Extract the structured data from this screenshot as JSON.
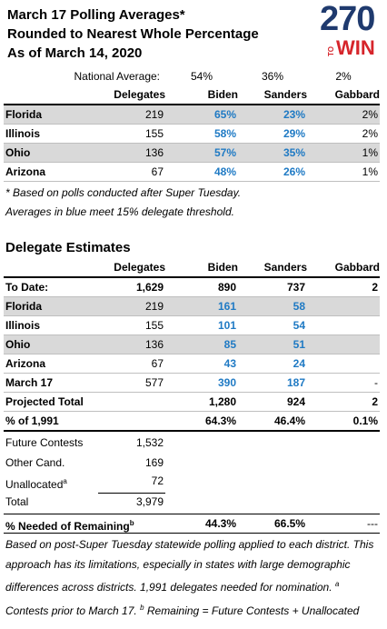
{
  "logo": {
    "number": "270",
    "to": "TO",
    "win": "WIN"
  },
  "polling": {
    "title": [
      "March 17 Polling Averages*",
      "Rounded to Nearest Whole Percentage",
      "As of March 14, 2020"
    ],
    "national_average": {
      "label": "National Average:",
      "values": [
        "54%",
        "36%",
        "2%"
      ]
    },
    "columns": [
      "Delegates",
      "Biden",
      "Sanders",
      "Gabbard"
    ],
    "rows": [
      {
        "label": "Florida",
        "cells": [
          "219",
          "65%",
          "23%",
          "2%"
        ],
        "shaded": true,
        "blue": true
      },
      {
        "label": "Illinois",
        "cells": [
          "155",
          "58%",
          "29%",
          "2%"
        ],
        "shaded": false,
        "blue": true
      },
      {
        "label": "Ohio",
        "cells": [
          "136",
          "57%",
          "35%",
          "1%"
        ],
        "shaded": true,
        "blue": true
      },
      {
        "label": "Arizona",
        "cells": [
          "67",
          "48%",
          "26%",
          "1%"
        ],
        "shaded": false,
        "blue": true
      }
    ],
    "notes": [
      "* Based on polls conducted after Super Tuesday.",
      "Averages in blue meet 15% delegate threshold."
    ]
  },
  "estimates": {
    "title": "Delegate Estimates",
    "columns": [
      "Delegates",
      "Biden",
      "Sanders",
      "Gabbard"
    ],
    "rows": [
      {
        "label": "To Date:",
        "cells": [
          "1,629",
          "890",
          "737",
          "2"
        ],
        "bold": true
      },
      {
        "label": "Florida",
        "cells": [
          "219",
          "161",
          "58",
          null
        ],
        "shaded": true,
        "blue": true
      },
      {
        "label": "Illinois",
        "cells": [
          "155",
          "101",
          "54",
          null
        ],
        "blue": true
      },
      {
        "label": "Ohio",
        "cells": [
          "136",
          "85",
          "51",
          null
        ],
        "shaded": true,
        "blue": true
      },
      {
        "label": "Arizona",
        "cells": [
          "67",
          "43",
          "24",
          null
        ],
        "blue": true
      },
      {
        "label": "March 17",
        "cells": [
          "577",
          "390",
          "187",
          "-"
        ],
        "blue": true
      },
      {
        "label": "Projected Total",
        "cells": [
          null,
          "1,280",
          "924",
          "2"
        ],
        "bold": true
      },
      {
        "label": "% of 1,991",
        "cells": [
          null,
          "64.3%",
          "46.4%",
          "0.1%"
        ],
        "bold": true
      }
    ],
    "remaining": [
      {
        "label": "Future Contests",
        "value": "1,532"
      },
      {
        "label": "Other Cand.",
        "value": "169"
      },
      {
        "label": "Unallocated",
        "sup": "a",
        "value": "72",
        "underline": true
      },
      {
        "label": "Total",
        "value": "3,979"
      }
    ],
    "needed": {
      "label": "% Needed of Remaining",
      "sup": "b",
      "cells": [
        null,
        "44.3%",
        "66.5%",
        "---"
      ]
    },
    "footnote": [
      {
        "text": "Based on post-Super Tuesday statewide polling applied to each district. This approach has its limitations, especially in states with large demographic differences across districts. 1,991 delegates needed for nomination. "
      },
      {
        "sup": "a"
      },
      {
        "text": " Contests prior to March 17. "
      },
      {
        "sup": "b"
      },
      {
        "text": " Remaining = Future Contests + Unallocated"
      }
    ]
  }
}
